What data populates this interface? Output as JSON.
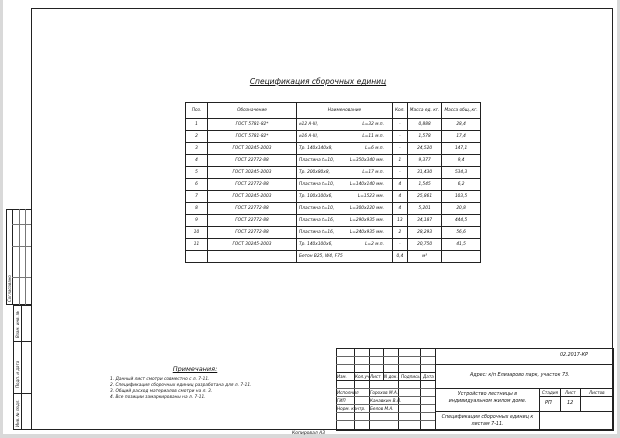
{
  "spec_title": "Спецификация сборочных единиц",
  "table": {
    "headers": [
      "Поз.",
      "Обозначение",
      "Наименование",
      "Кол.",
      "Масса ед. кг.",
      "Масса общ.,кг."
    ],
    "rows": [
      {
        "pos": "1",
        "designation": "ГОСТ 5781-82*",
        "name": "⌀12 A-III,",
        "length": "L=32 м.п.",
        "qty": "-",
        "unit_mass": "0,888",
        "total_mass": "28,4"
      },
      {
        "pos": "2",
        "designation": "ГОСТ 5781-82*",
        "name": "⌀16 A-III,",
        "length": "L=11 м.п.",
        "qty": "-",
        "unit_mass": "1,578",
        "total_mass": "17,4"
      },
      {
        "pos": "3",
        "designation": "ГОСТ 30245-2003",
        "name": "Тр. 140х140х8,",
        "length": "L=6 м.п.",
        "qty": "-",
        "unit_mass": "24,520",
        "total_mass": "147,1"
      },
      {
        "pos": "4",
        "designation": "ГОСТ 22772-88",
        "name": "Пластина t=10,",
        "length": "L=350х340 мм.",
        "qty": "1",
        "unit_mass": "9,377",
        "total_mass": "9,4"
      },
      {
        "pos": "5",
        "designation": "ГОСТ 30245-2003",
        "name": "Тр. 200х80х8,",
        "length": "L=17 м.п.",
        "qty": "-",
        "unit_mass": "31,430",
        "total_mass": "534,3"
      },
      {
        "pos": "6",
        "designation": "ГОСТ 22772-88",
        "name": "Пластина t=10,",
        "length": "L=140х140 мм.",
        "qty": "4",
        "unit_mass": "1,545",
        "total_mass": "6,2"
      },
      {
        "pos": "7",
        "designation": "ГОСТ 30245-2003",
        "name": "Тр. 100х100х6,",
        "length": "L=1523 мм.",
        "qty": "4",
        "unit_mass": "25,861",
        "total_mass": "103,5"
      },
      {
        "pos": "8",
        "designation": "ГОСТ 22772-88",
        "name": "Пластина t=10,",
        "length": "L=300х220 мм.",
        "qty": "4",
        "unit_mass": "5,201",
        "total_mass": "20,8"
      },
      {
        "pos": "9",
        "designation": "ГОСТ 22772-88",
        "name": "Пластина t=16,",
        "length": "L=290х935 мм.",
        "qty": "13",
        "unit_mass": "34,187",
        "total_mass": "444,5"
      },
      {
        "pos": "10",
        "designation": "ГОСТ 22772-88",
        "name": "Пластина t=16,",
        "length": "L=240х935 мм.",
        "qty": "2",
        "unit_mass": "28,293",
        "total_mass": "56,6"
      },
      {
        "pos": "11",
        "designation": "ГОСТ 30245-2003",
        "name": "Тр. 140х100х6,",
        "length": "L=2 м.п.",
        "qty": "-",
        "unit_mass": "20,750",
        "total_mass": "41,5"
      },
      {
        "pos": "",
        "designation": "",
        "name": "Бетон В25, W4, F75",
        "length": "",
        "qty": "0,4",
        "unit_mass": "м³",
        "total_mass": ""
      }
    ]
  },
  "notes": {
    "title": "Примечания:",
    "items": [
      "1. Данный лист смотри совместно с л. 7-11.",
      "2. Спецификация сборочных единиц разработана для л. 7-11.",
      "3. Общий расход материалов смотри на л. 3.",
      "4. Все позиции замаркированы на л. 7-11."
    ]
  },
  "side_stamp": {
    "agreed": "Согласовано",
    "replace_inv": "Взам. инв. №",
    "sign_date": "Подп. и дата",
    "inv_orig": "Инв. № подл."
  },
  "title_block": {
    "code": "02.2017-КР",
    "address": "Адрес: к/п Елизарово парк, участок 73.",
    "col_headers": [
      "Изм.",
      "Кол.уч",
      "Лист",
      "N док.",
      "Подпись",
      "Дата"
    ],
    "roles": [
      {
        "role": "Исполнил",
        "name": "Горохов М.А."
      },
      {
        "role": "ГИП",
        "name": "Канавкин В.Л."
      },
      {
        "role": "Норм. контр.",
        "name": "Белов М.А."
      }
    ],
    "object": "Устройство лестницы в индивидуальном жилом доме.",
    "sheet_title": "Спецификация сборочных единиц к листам 7-11.",
    "stage_label": "Стадия",
    "sheet_label": "Лист",
    "sheets_label": "Листов",
    "stage": "РП",
    "sheet": "12",
    "sheets": ""
  },
  "copied": "Копировал А3"
}
